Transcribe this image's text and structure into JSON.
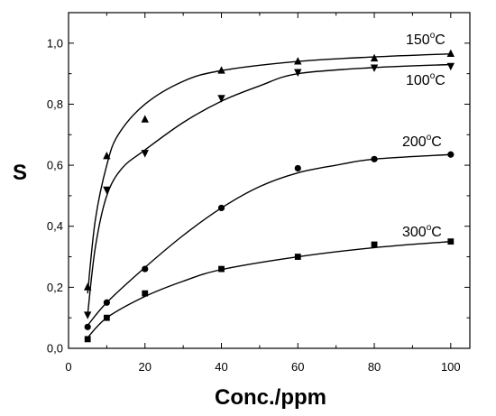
{
  "chart_data": {
    "type": "scatter",
    "xlabel": "Conc./ppm",
    "ylabel": "S",
    "xlim": [
      0,
      105
    ],
    "ylim": [
      0,
      1.1
    ],
    "x_ticks": [
      "0",
      "20",
      "40",
      "60",
      "80",
      "100"
    ],
    "y_ticks": [
      "0,0",
      "0,2",
      "0,4",
      "0,6",
      "0,8",
      "1,0"
    ],
    "grid": false,
    "legend": "none",
    "x": [
      5,
      10,
      20,
      40,
      60,
      80,
      100
    ],
    "series": [
      {
        "name": "150°C",
        "label_base": "150",
        "label_sup": "o",
        "label_unit": "C",
        "marker": "triangle-up",
        "values": [
          0.2,
          0.63,
          0.75,
          0.91,
          0.94,
          0.95,
          0.965
        ],
        "fit": [
          [
            5,
            0.18
          ],
          [
            7,
            0.42
          ],
          [
            10,
            0.6
          ],
          [
            13,
            0.7
          ],
          [
            20,
            0.8
          ],
          [
            30,
            0.875
          ],
          [
            40,
            0.91
          ],
          [
            60,
            0.94
          ],
          [
            80,
            0.955
          ],
          [
            100,
            0.965
          ]
        ]
      },
      {
        "name": "100°C",
        "label_base": "100",
        "label_sup": "o",
        "label_unit": "C",
        "marker": "triangle-down",
        "values": [
          0.11,
          0.52,
          0.64,
          0.82,
          0.905,
          0.92,
          0.925
        ],
        "fit": [
          [
            5,
            0.11
          ],
          [
            7,
            0.33
          ],
          [
            10,
            0.5
          ],
          [
            14,
            0.59
          ],
          [
            20,
            0.65
          ],
          [
            30,
            0.74
          ],
          [
            40,
            0.81
          ],
          [
            50,
            0.86
          ],
          [
            60,
            0.9
          ],
          [
            80,
            0.92
          ],
          [
            100,
            0.93
          ]
        ]
      },
      {
        "name": "200°C",
        "label_base": "200",
        "label_sup": "o",
        "label_unit": "C",
        "marker": "circle",
        "values": [
          0.07,
          0.15,
          0.26,
          0.46,
          0.59,
          0.62,
          0.635
        ],
        "fit": [
          [
            5,
            0.075
          ],
          [
            10,
            0.15
          ],
          [
            20,
            0.265
          ],
          [
            30,
            0.37
          ],
          [
            40,
            0.46
          ],
          [
            50,
            0.53
          ],
          [
            60,
            0.575
          ],
          [
            70,
            0.6
          ],
          [
            80,
            0.62
          ],
          [
            100,
            0.635
          ]
        ]
      },
      {
        "name": "300°C",
        "label_base": "300",
        "label_sup": "o",
        "label_unit": "C",
        "marker": "square",
        "values": [
          0.03,
          0.1,
          0.18,
          0.26,
          0.3,
          0.34,
          0.35
        ],
        "fit": [
          [
            5,
            0.035
          ],
          [
            10,
            0.1
          ],
          [
            20,
            0.17
          ],
          [
            30,
            0.22
          ],
          [
            40,
            0.258
          ],
          [
            60,
            0.3
          ],
          [
            80,
            0.33
          ],
          [
            100,
            0.35
          ]
        ]
      }
    ]
  }
}
